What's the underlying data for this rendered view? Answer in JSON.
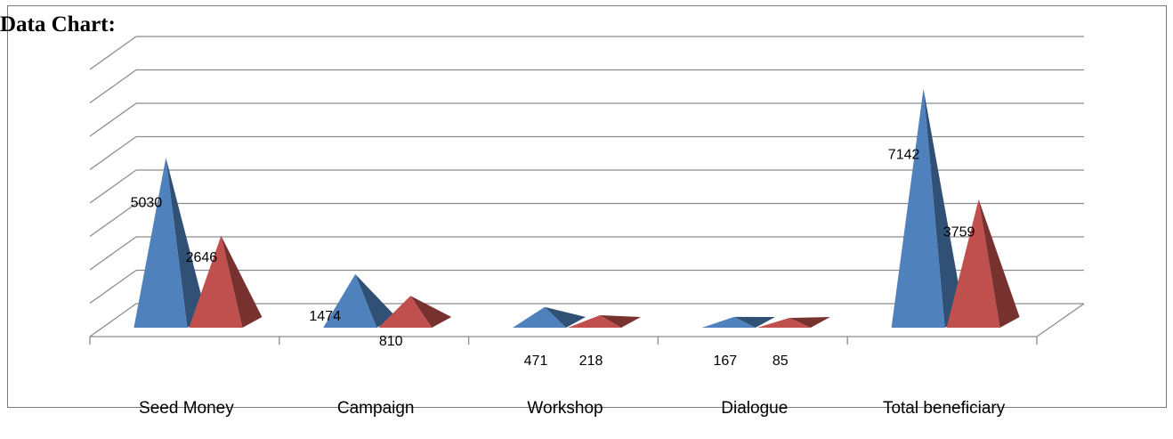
{
  "heading": "Data Chart:",
  "chart_data": {
    "type": "bar",
    "style": "3d-pyramid",
    "categories": [
      "Seed Money",
      "Campaign",
      "Workshop",
      "Dialogue",
      "Total beneficiary"
    ],
    "series": [
      {
        "values": [
          5030,
          1474,
          471,
          167,
          7142
        ],
        "color": "#4f81bd"
      },
      {
        "values": [
          2646,
          810,
          218,
          85,
          3759
        ],
        "color": "#c0504d"
      }
    ],
    "ylim": [
      0,
      8000
    ],
    "grid": true,
    "legend": "none"
  }
}
